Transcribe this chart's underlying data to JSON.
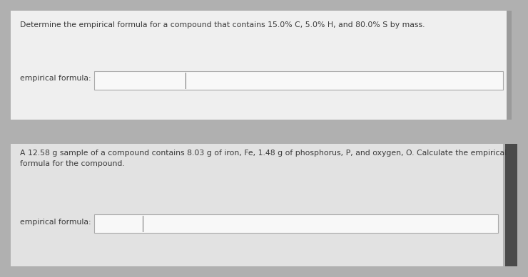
{
  "bg_outer": "#b0b0b0",
  "card1_bg": "#efefef",
  "card2_bg": "#e2e2e2",
  "card1_right_bar": "#9a9a9a",
  "card2_right_bar": "#4a4a4a",
  "q1_text": "Determine the empirical formula for a compound that contains 15.0% C, 5.0% H, and 80.0% S by mass.",
  "q1_label": "empirical formula:",
  "q2_text1": "A 12.58 g sample of a compound contains 8.03 g of iron, Fe, 1.48 g of phosphorus, P, and oxygen, O. Calculate the empirical",
  "q2_text2": "formula for the compound.",
  "q2_label": "empirical formula:",
  "text_color": "#3a3a3a",
  "box_edge_color": "#aaaaaa",
  "box_fill": "#f8f8f8",
  "font_size": 7.8
}
